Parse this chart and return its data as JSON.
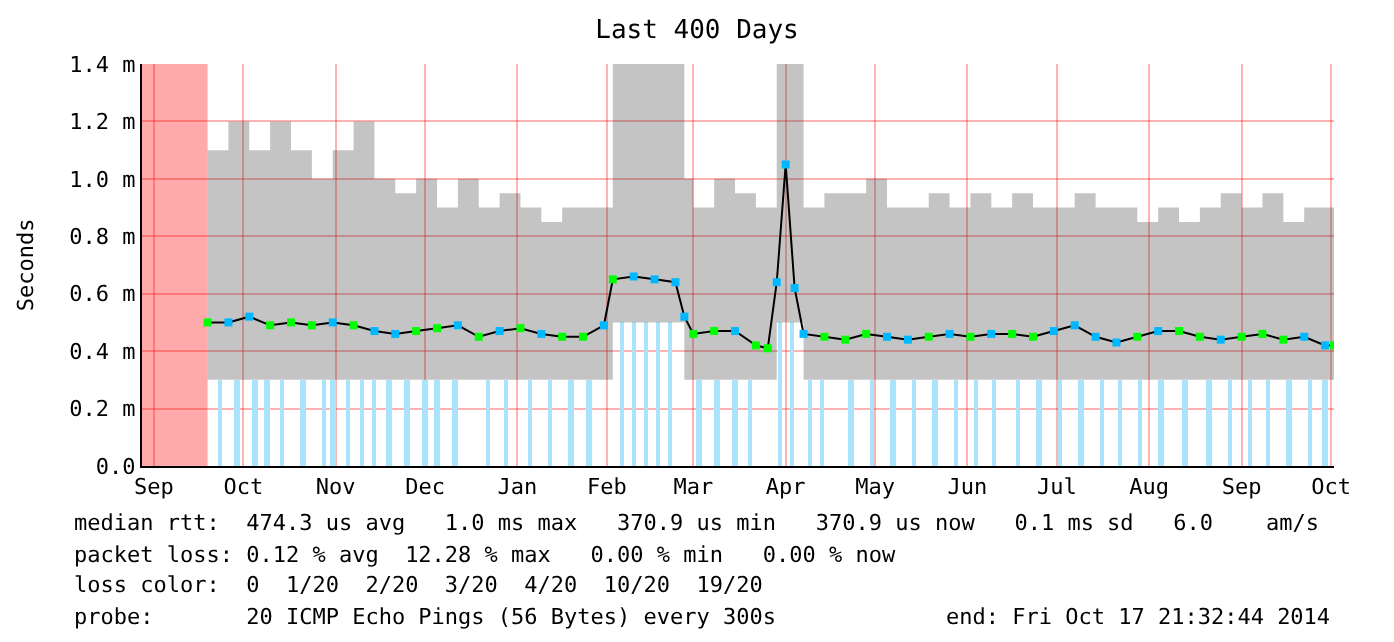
{
  "chart_data": {
    "type": "line",
    "title": "Last 400 Days",
    "ylabel": "Seconds",
    "xlim": [
      "2013-09-12",
      "2014-10-17"
    ],
    "xticks": [
      {
        "value": "2013-09-16",
        "label": "Sep"
      },
      {
        "value": "2013-10-16",
        "label": "Oct"
      },
      {
        "value": "2013-11-16",
        "label": "Nov"
      },
      {
        "value": "2013-12-16",
        "label": "Dec"
      },
      {
        "value": "2014-01-16",
        "label": "Jan"
      },
      {
        "value": "2014-02-15",
        "label": "Feb"
      },
      {
        "value": "2014-03-16",
        "label": "Mar"
      },
      {
        "value": "2014-04-16",
        "label": "Apr"
      },
      {
        "value": "2014-05-16",
        "label": "May"
      },
      {
        "value": "2014-06-16",
        "label": "Jun"
      },
      {
        "value": "2014-07-16",
        "label": "Jul"
      },
      {
        "value": "2014-08-16",
        "label": "Aug"
      },
      {
        "value": "2014-09-16",
        "label": "Sep"
      },
      {
        "value": "2014-10-16",
        "label": "Oct"
      }
    ],
    "ylim": [
      0,
      1.4
    ],
    "yticks": [
      {
        "value": 0,
        "label": "0.0"
      },
      {
        "value": 0.2,
        "label": "0.2 m"
      },
      {
        "value": 0.4,
        "label": "0.4 m"
      },
      {
        "value": 0.6,
        "label": "0.6 m"
      },
      {
        "value": 0.8,
        "label": "0.8 m"
      },
      {
        "value": 1.0,
        "label": "1.0 m"
      },
      {
        "value": 1.2,
        "label": "1.2 m"
      },
      {
        "value": 1.4,
        "label": "1.4 m"
      }
    ],
    "grid": true,
    "marker": "square",
    "line_style": "solid",
    "bands": [
      {
        "axis": "x",
        "from": "2013-09-12",
        "to": "2013-10-04",
        "color": "#ffaaaa"
      }
    ],
    "series": [
      {
        "type": "bar",
        "color": "#aae4fc",
        "x": [
          "2013-10-08",
          "2013-10-14",
          "2013-10-20",
          "2013-10-24",
          "2013-10-29",
          "2013-11-05",
          "2013-11-12",
          "2013-11-15",
          "2013-11-20",
          "2013-11-25",
          "2013-11-29",
          "2013-12-04",
          "2013-12-10",
          "2013-12-16",
          "2013-12-20",
          "2013-12-26",
          "2014-01-06",
          "2014-01-12",
          "2014-01-20",
          "2014-01-27",
          "2014-02-03",
          "2014-02-09",
          "2014-02-20",
          "2014-02-24",
          "2014-02-28",
          "2014-03-04",
          "2014-03-08",
          "2014-03-18",
          "2014-03-24",
          "2014-03-30",
          "2014-04-04",
          "2014-04-14",
          "2014-04-18",
          "2014-04-24",
          "2014-04-28",
          "2014-05-08",
          "2014-05-15",
          "2014-05-22",
          "2014-05-29",
          "2014-06-05",
          "2014-06-12",
          "2014-06-19",
          "2014-06-25",
          "2014-07-03",
          "2014-07-10",
          "2014-07-17",
          "2014-07-24",
          "2014-07-31",
          "2014-08-06",
          "2014-08-13",
          "2014-08-20",
          "2014-08-28",
          "2014-09-05",
          "2014-09-12",
          "2014-09-19",
          "2014-09-25",
          "2014-10-02",
          "2014-10-09",
          "2014-10-14"
        ],
        "values": [
          0.3,
          0.3,
          0.3,
          0.3,
          0.3,
          0.3,
          0.3,
          0.3,
          0.3,
          0.3,
          0.3,
          0.3,
          0.3,
          0.3,
          0.3,
          0.3,
          0.3,
          0.3,
          0.3,
          0.3,
          0.3,
          0.3,
          0.5,
          0.5,
          0.5,
          0.5,
          0.5,
          0.3,
          0.3,
          0.3,
          0.3,
          0.5,
          0.5,
          0.3,
          0.3,
          0.3,
          0.3,
          0.3,
          0.3,
          0.3,
          0.3,
          0.3,
          0.3,
          0.3,
          0.3,
          0.3,
          0.3,
          0.3,
          0.3,
          0.3,
          0.3,
          0.3,
          0.3,
          0.3,
          0.3,
          0.3,
          0.3,
          0.3,
          0.3
        ]
      },
      {
        "color": "#000000",
        "x": [
          "2013-10-04",
          "2013-10-11",
          "2013-10-18",
          "2013-10-25",
          "2013-11-01",
          "2013-11-08",
          "2013-11-15",
          "2013-11-22",
          "2013-11-29",
          "2013-12-06",
          "2013-12-13",
          "2013-12-20",
          "2013-12-27",
          "2014-01-03",
          "2014-01-10",
          "2014-01-17",
          "2014-01-24",
          "2014-01-31",
          "2014-02-07",
          "2014-02-14",
          "2014-02-17",
          "2014-02-24",
          "2014-03-03",
          "2014-03-10",
          "2014-03-13",
          "2014-03-16",
          "2014-03-23",
          "2014-03-30",
          "2014-04-06",
          "2014-04-10",
          "2014-04-13",
          "2014-04-16",
          "2014-04-19",
          "2014-04-22",
          "2014-04-29",
          "2014-05-06",
          "2014-05-13",
          "2014-05-20",
          "2014-05-27",
          "2014-06-03",
          "2014-06-10",
          "2014-06-17",
          "2014-06-24",
          "2014-07-01",
          "2014-07-08",
          "2014-07-15",
          "2014-07-22",
          "2014-07-29",
          "2014-08-05",
          "2014-08-12",
          "2014-08-19",
          "2014-08-26",
          "2014-09-02",
          "2014-09-09",
          "2014-09-16",
          "2014-09-23",
          "2014-09-30",
          "2014-10-07",
          "2014-10-14",
          "2014-10-17"
        ],
        "values": [
          0.5,
          0.5,
          0.52,
          0.49,
          0.5,
          0.49,
          0.5,
          0.49,
          0.47,
          0.46,
          0.47,
          0.48,
          0.49,
          0.45,
          0.47,
          0.48,
          0.46,
          0.45,
          0.45,
          0.49,
          0.65,
          0.66,
          0.65,
          0.64,
          0.52,
          0.46,
          0.47,
          0.47,
          0.42,
          0.41,
          0.64,
          1.05,
          0.62,
          0.46,
          0.45,
          0.44,
          0.46,
          0.45,
          0.44,
          0.45,
          0.46,
          0.45,
          0.46,
          0.46,
          0.45,
          0.47,
          0.49,
          0.45,
          0.43,
          0.45,
          0.47,
          0.47,
          0.45,
          0.44,
          0.45,
          0.46,
          0.44,
          0.45,
          0.42,
          0.42
        ],
        "colors": [
          "#00ff00",
          "#00b8ff",
          "#00b8ff",
          "#00ff00",
          "#00ff00",
          "#00ff00",
          "#00b8ff",
          "#00ff00",
          "#00b8ff",
          "#00b8ff",
          "#00ff00",
          "#00ff00",
          "#00b8ff",
          "#00ff00",
          "#00b8ff",
          "#00ff00",
          "#00b8ff",
          "#00ff00",
          "#00ff00",
          "#00b8ff",
          "#00ff00",
          "#00b8ff",
          "#00b8ff",
          "#00b8ff",
          "#00b8ff",
          "#00ff00",
          "#00ff00",
          "#00b8ff",
          "#00ff00",
          "#00ff00",
          "#00b8ff",
          "#00b8ff",
          "#00b8ff",
          "#00b8ff",
          "#00ff00",
          "#00ff00",
          "#00ff00",
          "#00b8ff",
          "#00b8ff",
          "#00ff00",
          "#00b8ff",
          "#00ff00",
          "#00b8ff",
          "#00ff00",
          "#00ff00",
          "#00b8ff",
          "#00b8ff",
          "#00b8ff",
          "#00b8ff",
          "#00ff00",
          "#00b8ff",
          "#00ff00",
          "#00ff00",
          "#00b8ff",
          "#00ff00",
          "#00ff00",
          "#00ff00",
          "#00b8ff",
          "#00b8ff",
          "#00ff00"
        ],
        "lower": [
          0.3,
          0.3,
          0.3,
          0.3,
          0.3,
          0.3,
          0.3,
          0.3,
          0.3,
          0.3,
          0.3,
          0.3,
          0.3,
          0.3,
          0.3,
          0.3,
          0.3,
          0.3,
          0.3,
          0.3,
          0.5,
          0.5,
          0.5,
          0.5,
          0.3,
          0.3,
          0.3,
          0.3,
          0.3,
          0.3,
          0.5,
          0.5,
          0.5,
          0.3,
          0.3,
          0.3,
          0.3,
          0.3,
          0.3,
          0.3,
          0.3,
          0.3,
          0.3,
          0.3,
          0.3,
          0.3,
          0.3,
          0.3,
          0.3,
          0.3,
          0.3,
          0.3,
          0.3,
          0.3,
          0.3,
          0.3,
          0.3,
          0.3,
          0.3,
          0.3
        ],
        "upper": [
          1.1,
          1.2,
          1.1,
          1.2,
          1.1,
          1.0,
          1.1,
          1.2,
          1.0,
          0.95,
          1.0,
          0.9,
          1.0,
          0.9,
          0.95,
          0.9,
          0.85,
          0.9,
          0.9,
          0.9,
          1.4,
          1.4,
          1.4,
          1.4,
          1.0,
          0.9,
          1.0,
          0.95,
          0.9,
          0.9,
          1.4,
          1.4,
          1.4,
          0.9,
          0.95,
          0.95,
          1.0,
          0.9,
          0.9,
          0.95,
          0.9,
          0.95,
          0.9,
          0.95,
          0.9,
          0.9,
          0.95,
          0.9,
          0.9,
          0.85,
          0.9,
          0.85,
          0.9,
          0.95,
          0.9,
          0.95,
          0.85,
          0.9,
          0.9,
          0.9
        ]
      }
    ],
    "annotations": [
      "median rtt:  474.3 us avg   1.0 ms max   370.9 us min   370.9 us now   0.1 ms sd   6.0    am/s",
      "packet loss: 0.12 % avg  12.28 % max   0.00 % min   0.00 % now",
      "loss color:  0  1/20  2/20  3/20  4/20  10/20  19/20",
      "probe:       20 ICMP Echo Pings (56 Bytes) every 300s",
      "end: Fri Oct 17 21:32:44 2014"
    ]
  }
}
